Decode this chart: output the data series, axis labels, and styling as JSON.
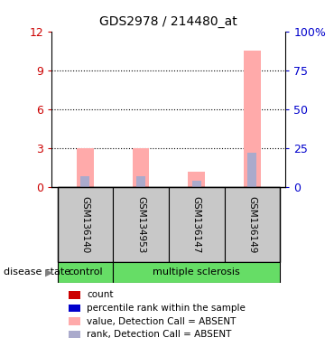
{
  "title": "GDS2978 / 214480_at",
  "samples": [
    "GSM136140",
    "GSM134953",
    "GSM136147",
    "GSM136149"
  ],
  "groups": [
    "control",
    "multiple sclerosis",
    "multiple sclerosis",
    "multiple sclerosis"
  ],
  "pink_values": [
    3.0,
    3.0,
    1.2,
    10.5
  ],
  "blue_values": [
    7.0,
    7.0,
    4.0,
    22.0
  ],
  "ylim_left": [
    0,
    12
  ],
  "ylim_right": [
    0,
    100
  ],
  "yticks_left": [
    0,
    3,
    6,
    9,
    12
  ],
  "yticks_right": [
    0,
    25,
    50,
    75,
    100
  ],
  "ytick_labels_left": [
    "0",
    "3",
    "6",
    "9",
    "12"
  ],
  "ytick_labels_right": [
    "0",
    "25",
    "50",
    "75",
    "100%"
  ],
  "left_tick_color": "#cc0000",
  "right_tick_color": "#0000cc",
  "pink_color": "#ffaaaa",
  "blue_color": "#aaaacc",
  "red_color": "#cc0000",
  "legend_items": [
    {
      "label": "count",
      "color": "#cc0000"
    },
    {
      "label": "percentile rank within the sample",
      "color": "#0000cc"
    },
    {
      "label": "value, Detection Call = ABSENT",
      "color": "#ffaaaa"
    },
    {
      "label": "rank, Detection Call = ABSENT",
      "color": "#aaaacc"
    }
  ],
  "disease_state_label": "disease state",
  "sample_bg_color": "#c8c8c8",
  "green_color": "#66dd66",
  "plot_bg_color": "#ffffff",
  "bar_width": 0.3
}
